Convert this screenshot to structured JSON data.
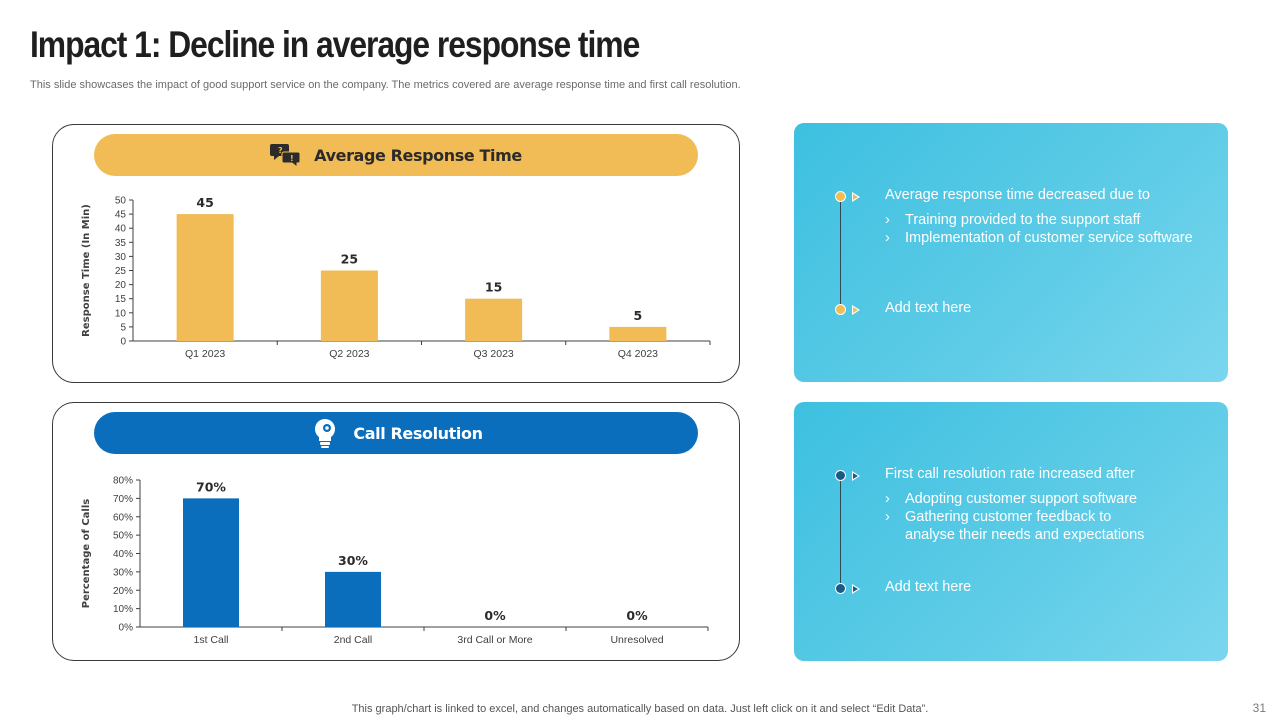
{
  "slide": {
    "title": "Impact 1: Decline in average response time",
    "subtitle": "This slide showcases the impact of good support service on the company. The metrics covered are average response time and first call resolution.",
    "footer": "This graph/chart is linked to excel,  and changes automatically based on data. Just left click on it and select “Edit Data”.",
    "page_number": "31"
  },
  "panels": [
    {
      "title": "Average Response Time",
      "icon": "chat-bubbles-icon",
      "color": "#f1bc55"
    },
    {
      "title": "Call Resolution",
      "icon": "lightbulb-gear-icon",
      "color": "#0a6ebd"
    }
  ],
  "chart_data": [
    {
      "type": "bar",
      "title": "Average Response Time",
      "categories": [
        "Q1 2023",
        "Q2 2023",
        "Q3 2023",
        "Q4 2023"
      ],
      "values": [
        45,
        25,
        15,
        5
      ],
      "value_labels": [
        "45",
        "25",
        "15",
        "5"
      ],
      "ylabel": "Response Time (In Min)",
      "xlabel": "",
      "ylim": [
        0,
        50
      ],
      "yticks": [
        "0",
        "5",
        "10",
        "15",
        "20",
        "25",
        "30",
        "35",
        "40",
        "45",
        "50"
      ],
      "ytick_values": [
        0,
        5,
        10,
        15,
        20,
        25,
        30,
        35,
        40,
        45,
        50
      ],
      "color": "#f1bc55",
      "grid": false
    },
    {
      "type": "bar",
      "title": "Call Resolution",
      "categories": [
        "1st Call",
        "2nd Call",
        "3rd Call or More",
        "Unresolved"
      ],
      "values": [
        70,
        30,
        0,
        0
      ],
      "value_labels": [
        "70%",
        "30%",
        "0%",
        "0%"
      ],
      "ylabel": "Percentage of Calls",
      "xlabel": "",
      "ylim": [
        0,
        80
      ],
      "yticks": [
        "0%",
        "10%",
        "20%",
        "30%",
        "40%",
        "50%",
        "60%",
        "70%",
        "80%"
      ],
      "ytick_values": [
        0,
        10,
        20,
        30,
        40,
        50,
        60,
        70,
        80
      ],
      "color": "#0a6ebd",
      "grid": false
    }
  ],
  "info_boxes": [
    {
      "heading": "Average response time decreased due to",
      "bullets": [
        "Training provided to the support staff",
        "Implementation of customer service software"
      ],
      "footer_text": "Add text here",
      "dot_color": "#f1bc55"
    },
    {
      "heading": "First call resolution rate increased after",
      "bullets": [
        "Adopting customer support software",
        "Gathering customer feedback to analyse their needs and expectations"
      ],
      "footer_text": "Add text here",
      "dot_color": "#1c5a84"
    }
  ],
  "bullet_glyph": "›"
}
